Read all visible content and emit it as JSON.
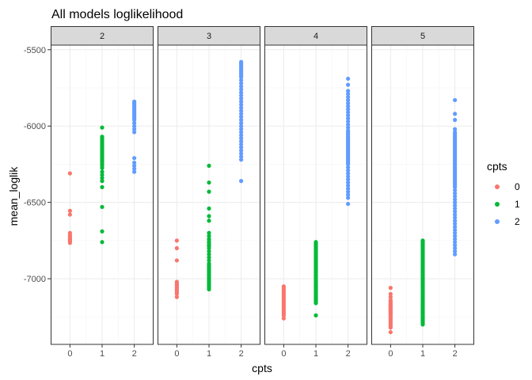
{
  "chart_data": {
    "type": "scatter",
    "title": "All models loglikelihood",
    "xlabel": "cpts",
    "ylabel": "mean_loglik",
    "facet_variable": "facet",
    "facets": [
      {
        "label": "2",
        "series": [
          {
            "name": "0",
            "x": [
              0,
              0,
              0,
              0,
              0,
              0,
              0,
              0,
              0,
              0,
              0,
              0
            ],
            "y": [
              -6310,
              -6555,
              -6580,
              -6700,
              -6715,
              -6725,
              -6735,
              -6740,
              -6745,
              -6750,
              -6755,
              -6765
            ]
          },
          {
            "name": "1",
            "x": [
              1,
              1,
              1,
              1,
              1,
              1,
              1,
              1,
              1,
              1,
              1,
              1,
              1,
              1,
              1,
              1,
              1,
              1,
              1,
              1,
              1,
              1,
              1,
              1,
              1,
              1,
              1,
              1,
              1,
              1
            ],
            "y": [
              -6010,
              -6070,
              -6080,
              -6090,
              -6100,
              -6110,
              -6120,
              -6130,
              -6140,
              -6150,
              -6160,
              -6170,
              -6180,
              -6190,
              -6200,
              -6210,
              -6220,
              -6230,
              -6240,
              -6250,
              -6260,
              -6275,
              -6300,
              -6320,
              -6340,
              -6360,
              -6400,
              -6530,
              -6690,
              -6760
            ]
          },
          {
            "name": "2",
            "x": [
              2,
              2,
              2,
              2,
              2,
              2,
              2,
              2,
              2,
              2,
              2,
              2,
              2,
              2,
              2,
              2,
              2,
              2,
              2,
              2,
              2,
              2
            ],
            "y": [
              -5840,
              -5850,
              -5860,
              -5870,
              -5880,
              -5890,
              -5900,
              -5910,
              -5920,
              -5930,
              -5940,
              -5950,
              -5960,
              -5980,
              -6000,
              -6020,
              -6040,
              -6210,
              -6240,
              -6260,
              -6280,
              -6300
            ]
          }
        ]
      },
      {
        "label": "3",
        "series": [
          {
            "name": "0",
            "x": [
              0,
              0,
              0,
              0,
              0,
              0,
              0,
              0,
              0,
              0,
              0,
              0,
              0
            ],
            "y": [
              -6750,
              -6800,
              -6880,
              -7020,
              -7030,
              -7040,
              -7050,
              -7060,
              -7070,
              -7080,
              -7090,
              -7100,
              -7120
            ]
          },
          {
            "name": "1",
            "x": [
              1,
              1,
              1,
              1,
              1,
              1,
              1,
              1,
              1,
              1,
              1,
              1,
              1,
              1,
              1,
              1,
              1,
              1,
              1,
              1,
              1,
              1,
              1,
              1,
              1,
              1,
              1,
              1,
              1,
              1,
              1,
              1,
              1,
              1,
              1,
              1,
              1
            ],
            "y": [
              -6260,
              -6370,
              -6430,
              -6540,
              -6590,
              -6620,
              -6700,
              -6720,
              -6740,
              -6760,
              -6780,
              -6800,
              -6820,
              -6840,
              -6860,
              -6880,
              -6900,
              -6910,
              -6920,
              -6930,
              -6940,
              -6950,
              -6960,
              -6970,
              -6980,
              -6990,
              -7000,
              -7010,
              -7020,
              -7030,
              -7040,
              -7050,
              -7060,
              -7070,
              -6745,
              -6765,
              -6785
            ]
          },
          {
            "name": "2",
            "x": [
              2,
              2,
              2,
              2,
              2,
              2,
              2,
              2,
              2,
              2,
              2,
              2,
              2,
              2,
              2,
              2,
              2,
              2,
              2,
              2,
              2,
              2,
              2,
              2,
              2,
              2,
              2,
              2,
              2,
              2,
              2,
              2,
              2,
              2,
              2,
              2,
              2,
              2,
              2
            ],
            "y": [
              -5580,
              -5600,
              -5620,
              -5640,
              -5660,
              -5680,
              -5700,
              -5720,
              -5740,
              -5760,
              -5780,
              -5800,
              -5820,
              -5840,
              -5860,
              -5880,
              -5900,
              -5920,
              -5940,
              -5960,
              -5980,
              -6000,
              -6020,
              -6040,
              -6060,
              -6080,
              -6100,
              -6120,
              -6140,
              -6160,
              -6180,
              -6200,
              -6220,
              -6360,
              -5590,
              -5610,
              -5630,
              -5650,
              -5670
            ]
          }
        ]
      },
      {
        "label": "4",
        "series": [
          {
            "name": "0",
            "x": [
              0,
              0,
              0,
              0,
              0,
              0,
              0,
              0,
              0,
              0,
              0,
              0,
              0,
              0,
              0,
              0,
              0,
              0,
              0,
              0,
              0
            ],
            "y": [
              -7050,
              -7060,
              -7070,
              -7080,
              -7090,
              -7100,
              -7110,
              -7120,
              -7130,
              -7140,
              -7150,
              -7160,
              -7170,
              -7180,
              -7190,
              -7200,
              -7210,
              -7220,
              -7230,
              -7240,
              -7260
            ]
          },
          {
            "name": "1",
            "x": [
              1,
              1,
              1,
              1,
              1,
              1,
              1,
              1,
              1,
              1,
              1,
              1,
              1,
              1,
              1,
              1,
              1,
              1,
              1,
              1,
              1,
              1,
              1,
              1,
              1,
              1,
              1,
              1,
              1,
              1,
              1,
              1,
              1,
              1,
              1,
              1,
              1,
              1,
              1,
              1,
              1,
              1
            ],
            "y": [
              -6760,
              -6770,
              -6780,
              -6790,
              -6800,
              -6810,
              -6820,
              -6830,
              -6840,
              -6850,
              -6860,
              -6870,
              -6880,
              -6890,
              -6900,
              -6910,
              -6920,
              -6930,
              -6940,
              -6950,
              -6960,
              -6970,
              -6980,
              -6990,
              -7000,
              -7010,
              -7020,
              -7030,
              -7040,
              -7050,
              -7060,
              -7070,
              -7080,
              -7090,
              -7100,
              -7110,
              -7120,
              -7130,
              -7140,
              -7150,
              -7160,
              -7240
            ]
          },
          {
            "name": "2",
            "x": [
              2,
              2,
              2,
              2,
              2,
              2,
              2,
              2,
              2,
              2,
              2,
              2,
              2,
              2,
              2,
              2,
              2,
              2,
              2,
              2,
              2,
              2,
              2,
              2,
              2,
              2,
              2,
              2,
              2,
              2,
              2,
              2,
              2,
              2,
              2,
              2,
              2,
              2,
              2,
              2,
              2,
              2,
              2,
              2,
              2,
              2,
              2,
              2,
              2,
              2
            ],
            "y": [
              -5690,
              -5730,
              -5770,
              -5790,
              -5810,
              -5830,
              -5850,
              -5870,
              -5890,
              -5910,
              -5930,
              -5950,
              -5970,
              -5990,
              -6010,
              -6030,
              -6050,
              -6070,
              -6090,
              -6110,
              -6130,
              -6150,
              -6170,
              -6190,
              -6210,
              -6230,
              -6250,
              -6270,
              -6290,
              -6310,
              -6330,
              -6350,
              -6370,
              -6390,
              -6410,
              -6430,
              -6450,
              -6470,
              -6510,
              -6040,
              -6060,
              -6080,
              -6100,
              -6120,
              -6140,
              -6160,
              -6180,
              -6200,
              -6220,
              -6240
            ]
          }
        ]
      },
      {
        "label": "5",
        "series": [
          {
            "name": "0",
            "x": [
              0,
              0,
              0,
              0,
              0,
              0,
              0,
              0,
              0,
              0,
              0,
              0,
              0,
              0,
              0,
              0,
              0,
              0,
              0,
              0,
              0,
              0,
              0,
              0,
              0,
              0,
              0,
              0,
              0,
              0,
              0
            ],
            "y": [
              -7060,
              -7100,
              -7120,
              -7140,
              -7150,
              -7160,
              -7170,
              -7180,
              -7190,
              -7200,
              -7210,
              -7220,
              -7230,
              -7240,
              -7250,
              -7260,
              -7270,
              -7280,
              -7290,
              -7300,
              -7310,
              -7320,
              -7350,
              -7165,
              -7175,
              -7185,
              -7195,
              -7205,
              -7215,
              -7225,
              -7235
            ]
          },
          {
            "name": "1",
            "x": [
              1,
              1,
              1,
              1,
              1,
              1,
              1,
              1,
              1,
              1,
              1,
              1,
              1,
              1,
              1,
              1,
              1,
              1,
              1,
              1,
              1,
              1,
              1,
              1,
              1,
              1,
              1,
              1,
              1,
              1,
              1,
              1,
              1,
              1,
              1,
              1,
              1,
              1,
              1,
              1,
              1,
              1,
              1,
              1,
              1,
              1,
              1,
              1,
              1,
              1,
              1,
              1,
              1,
              1,
              1,
              1,
              1
            ],
            "y": [
              -6750,
              -6760,
              -6770,
              -6780,
              -6790,
              -6800,
              -6810,
              -6820,
              -6830,
              -6840,
              -6850,
              -6860,
              -6870,
              -6880,
              -6890,
              -6900,
              -6910,
              -6920,
              -6930,
              -6940,
              -6950,
              -6960,
              -6970,
              -6980,
              -6990,
              -7000,
              -7010,
              -7020,
              -7030,
              -7040,
              -7050,
              -7060,
              -7070,
              -7080,
              -7090,
              -7100,
              -7110,
              -7120,
              -7130,
              -7140,
              -7150,
              -7160,
              -7170,
              -7180,
              -7190,
              -7200,
              -7210,
              -7220,
              -7230,
              -7240,
              -7250,
              -7260,
              -7270,
              -7280,
              -7290,
              -7300,
              -7220
            ]
          },
          {
            "name": "2",
            "x": [
              2,
              2,
              2,
              2,
              2,
              2,
              2,
              2,
              2,
              2,
              2,
              2,
              2,
              2,
              2,
              2,
              2,
              2,
              2,
              2,
              2,
              2,
              2,
              2,
              2,
              2,
              2,
              2,
              2,
              2,
              2,
              2,
              2,
              2,
              2,
              2,
              2,
              2,
              2,
              2,
              2,
              2,
              2,
              2,
              2,
              2,
              2,
              2,
              2,
              2,
              2,
              2,
              2,
              2,
              2,
              2,
              2,
              2,
              2,
              2,
              2,
              2,
              2
            ],
            "y": [
              -5830,
              -5920,
              -5960,
              -6020,
              -6040,
              -6060,
              -6080,
              -6100,
              -6120,
              -6140,
              -6160,
              -6180,
              -6200,
              -6220,
              -6240,
              -6260,
              -6280,
              -6300,
              -6320,
              -6340,
              -6360,
              -6380,
              -6400,
              -6420,
              -6440,
              -6460,
              -6480,
              -6500,
              -6520,
              -6540,
              -6560,
              -6580,
              -6600,
              -6620,
              -6640,
              -6660,
              -6680,
              -6700,
              -6720,
              -6740,
              -6760,
              -6780,
              -6800,
              -6820,
              -6840,
              -6050,
              -6070,
              -6090,
              -6110,
              -6130,
              -6150,
              -6170,
              -6190,
              -6210,
              -6230,
              -6250,
              -6270,
              -6290,
              -6310,
              -6330,
              -6350,
              -6370,
              -6390
            ]
          }
        ]
      }
    ],
    "x_ticks": [
      0,
      1,
      2
    ],
    "xlim": [
      -0.6,
      2.6
    ],
    "y_ticks": [
      -5500,
      -6000,
      -6500,
      -7000
    ],
    "ylim": [
      -7430,
      -5470
    ],
    "grid": true,
    "legend": {
      "title": "cpts",
      "position": "right",
      "entries": [
        "0",
        "1",
        "2"
      ]
    },
    "colors": {
      "0": "#F8766D",
      "1": "#00BA38",
      "2": "#619CFF"
    },
    "theme_colors": {
      "panel_border": "#333333",
      "strip_fill": "#d9d9d9",
      "grid_major": "#ebebeb",
      "grid_minor": "#f5f5f5",
      "tick": "#333333"
    }
  }
}
